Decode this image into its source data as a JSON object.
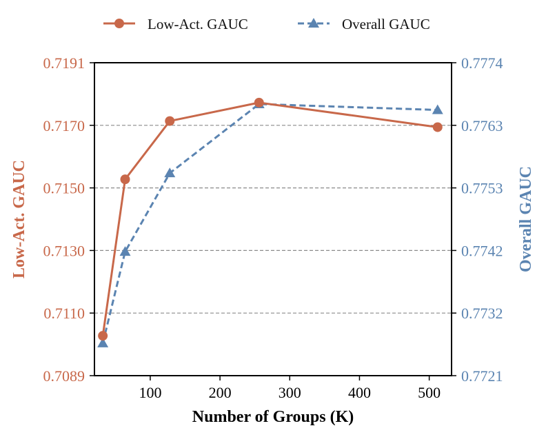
{
  "chart_data": {
    "type": "line",
    "xlabel": "Number of Groups (K)",
    "xlim": [
      20,
      532
    ],
    "x_ticks": [
      "100",
      "200",
      "300",
      "400",
      "500"
    ],
    "x_tick_values": [
      100,
      200,
      300,
      400,
      500
    ],
    "grid": "horizontal dashed",
    "legend_position": "top-center",
    "left_axis": {
      "label": "Low-Act. GAUC",
      "color": "#c8684a",
      "ylim": [
        0.7089,
        0.7191
      ],
      "tick_labels": [
        "0.7089",
        "0.7110",
        "0.7130",
        "0.7150",
        "0.7170",
        "0.7191"
      ]
    },
    "right_axis": {
      "label": "Overall GAUC",
      "color": "#5b84b1",
      "ylim": [
        0.7721,
        0.7774
      ],
      "tick_labels": [
        "0.7721",
        "0.7732",
        "0.7742",
        "0.7753",
        "0.7763",
        "0.7774"
      ]
    },
    "series": [
      {
        "name": "Low-Act. GAUC",
        "axis": "left",
        "color": "#c8684a",
        "marker": "circle",
        "line_style": "solid",
        "x": [
          32,
          64,
          128,
          256,
          512
        ],
        "values": [
          0.7102,
          0.7153,
          0.7172,
          0.7178,
          0.717
        ]
      },
      {
        "name": "Overall GAUC",
        "axis": "right",
        "color": "#5b84b1",
        "marker": "triangle",
        "line_style": "dashed",
        "x": [
          32,
          64,
          128,
          256,
          512
        ],
        "values": [
          0.77265,
          0.7742,
          0.77553,
          0.7767,
          0.7766
        ]
      }
    ]
  }
}
